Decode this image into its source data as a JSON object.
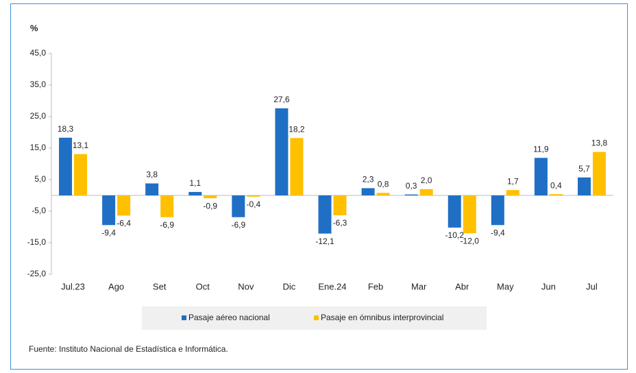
{
  "chart_data": {
    "type": "bar",
    "y_label": "%",
    "categories": [
      "Jul.23",
      "Ago",
      "Set",
      "Oct",
      "Nov",
      "Dic",
      "Ene.24",
      "Feb",
      "Mar",
      "Abr",
      "May",
      "Jun",
      "Jul"
    ],
    "series": [
      {
        "name": "Pasaje aéreo nacional",
        "color": "#1f6fc5",
        "values": [
          18.3,
          -9.4,
          3.8,
          1.1,
          -6.9,
          27.6,
          -12.1,
          2.3,
          0.3,
          -10.2,
          -9.4,
          11.9,
          5.7
        ],
        "value_labels": [
          "18,3",
          "-9,4",
          "3,8",
          "1,1",
          "-6,9",
          "27,6",
          "-12,1",
          "2,3",
          "0,3",
          "-10,2",
          "-9,4",
          "11,9",
          "5,7"
        ]
      },
      {
        "name": "Pasaje en ómnibus interprovincial",
        "color": "#ffc000",
        "values": [
          13.1,
          -6.4,
          -6.9,
          -0.9,
          -0.4,
          18.2,
          -6.3,
          0.8,
          2.0,
          -12.0,
          1.7,
          0.4,
          13.8
        ],
        "value_labels": [
          "13,1",
          "-6,4",
          "-6,9",
          "-0,9",
          "-0,4",
          "18,2",
          "-6,3",
          "0,8",
          "2,0",
          "-12,0",
          "1,7",
          "0,4",
          "13,8"
        ]
      }
    ],
    "ylim": [
      -25,
      45
    ],
    "yticks": [
      {
        "value": -25,
        "label": "-25,0"
      },
      {
        "value": -15,
        "label": "-15,0"
      },
      {
        "value": -5,
        "label": "-5,0"
      },
      {
        "value": 5,
        "label": "5,0"
      },
      {
        "value": 15,
        "label": "15,0"
      },
      {
        "value": 25,
        "label": "25,0"
      },
      {
        "value": 35,
        "label": "35,0"
      },
      {
        "value": 45,
        "label": "45,0"
      }
    ],
    "legend": "bottom",
    "source": "Fuente: Instituto Nacional de Estadística e Informática."
  }
}
